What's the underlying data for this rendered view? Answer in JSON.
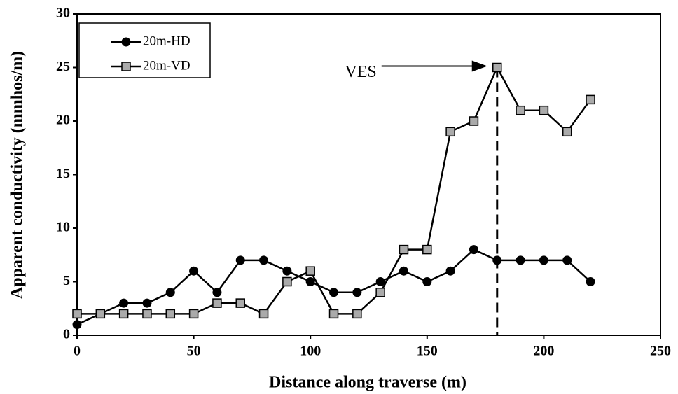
{
  "chart_data": {
    "type": "line",
    "xlabel": "Distance along traverse (m)",
    "ylabel": "Apparent conductivity (mmhos/m)",
    "x": [
      0,
      10,
      20,
      30,
      40,
      50,
      60,
      70,
      80,
      90,
      100,
      110,
      120,
      130,
      140,
      150,
      160,
      170,
      180,
      190,
      200,
      210,
      220
    ],
    "series": [
      {
        "name": "20m-HD",
        "color": "#000000",
        "marker": "circle",
        "values": [
          1,
          2,
          3,
          3,
          4,
          6,
          4,
          7,
          7,
          6,
          5,
          4,
          4,
          5,
          6,
          5,
          6,
          8,
          7,
          7,
          7,
          7,
          5
        ]
      },
      {
        "name": "20m-VD",
        "color": "#000000",
        "marker": "square",
        "values": [
          2,
          2,
          2,
          2,
          2,
          2,
          3,
          3,
          2,
          5,
          6,
          2,
          2,
          4,
          8,
          8,
          19,
          20,
          25,
          21,
          21,
          19,
          22
        ]
      }
    ],
    "xlim": [
      0,
      250
    ],
    "xticks": [
      0,
      50,
      100,
      150,
      200,
      250
    ],
    "ylim": [
      0,
      30
    ],
    "yticks": [
      0,
      5,
      10,
      15,
      20,
      25,
      30
    ],
    "grid": false,
    "legend": "upper left",
    "annotation": {
      "text": "VES",
      "x": 180,
      "y": 25
    }
  }
}
